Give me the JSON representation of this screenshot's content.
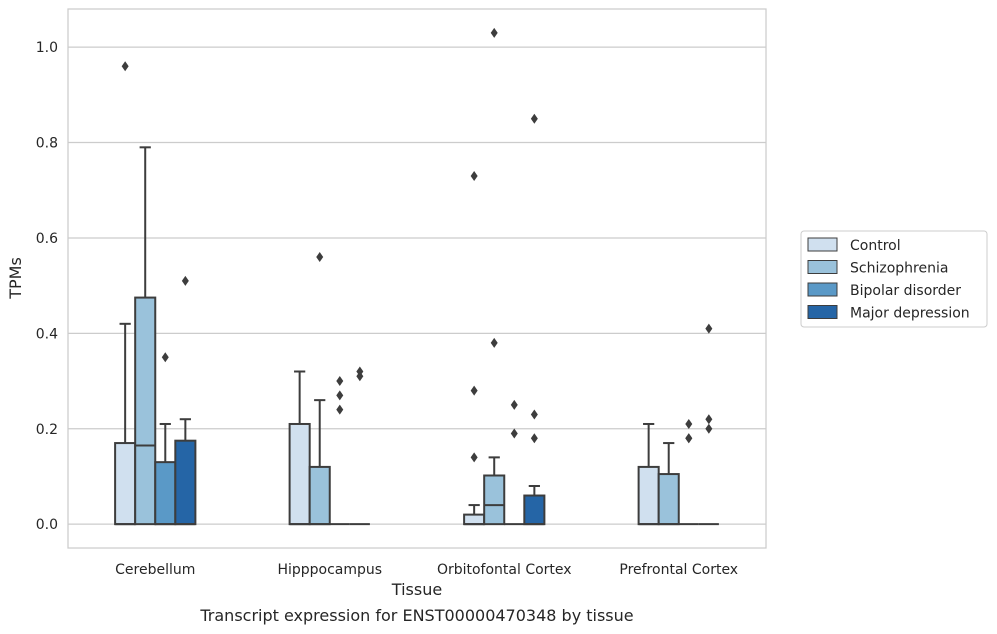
{
  "chart_data": {
    "type": "box",
    "ylabel": "TPMs",
    "xlabel": "Tissue",
    "caption": "Transcript expression for ENST00000470348 by tissue",
    "ylim": [
      -0.05,
      1.08
    ],
    "yticks": [
      "0.0",
      "0.2",
      "0.4",
      "0.6",
      "0.8",
      "1.0"
    ],
    "categories": [
      "Cerebellum",
      "Hipppocampus",
      "Orbitofontal Cortex",
      "Prefrontal Cortex"
    ],
    "grid": true,
    "legend_position": "right",
    "series": [
      {
        "name": "Control",
        "color": "#d0e0ef",
        "boxes": [
          {
            "q1": 0,
            "median": 0,
            "q3": 0.17,
            "whisker_low": 0,
            "whisker_high": 0.42,
            "outliers": [
              0.96
            ]
          },
          {
            "q1": 0,
            "median": 0,
            "q3": 0.21,
            "whisker_low": 0,
            "whisker_high": 0.32,
            "outliers": []
          },
          {
            "q1": 0,
            "median": 0,
            "q3": 0.02,
            "whisker_low": 0,
            "whisker_high": 0.04,
            "outliers": [
              0.14,
              0.28,
              0.73
            ]
          },
          {
            "q1": 0,
            "median": 0,
            "q3": 0.12,
            "whisker_low": 0,
            "whisker_high": 0.21,
            "outliers": []
          }
        ]
      },
      {
        "name": "Schizophrenia",
        "color": "#9ac2db",
        "boxes": [
          {
            "q1": 0,
            "median": 0.165,
            "q3": 0.475,
            "whisker_low": 0,
            "whisker_high": 0.79,
            "outliers": []
          },
          {
            "q1": 0,
            "median": 0,
            "q3": 0.12,
            "whisker_low": 0,
            "whisker_high": 0.26,
            "outliers": [
              0.56
            ]
          },
          {
            "q1": 0,
            "median": 0.04,
            "q3": 0.102,
            "whisker_low": 0,
            "whisker_high": 0.14,
            "outliers": [
              0.38,
              1.03
            ]
          },
          {
            "q1": 0,
            "median": 0,
            "q3": 0.105,
            "whisker_low": 0,
            "whisker_high": 0.17,
            "outliers": []
          }
        ]
      },
      {
        "name": "Bipolar disorder",
        "color": "#5a99c7",
        "boxes": [
          {
            "q1": 0,
            "median": 0,
            "q3": 0.13,
            "whisker_low": 0,
            "whisker_high": 0.21,
            "outliers": [
              0.35
            ]
          },
          {
            "q1": 0,
            "median": 0,
            "q3": 0,
            "whisker_low": 0,
            "whisker_high": 0,
            "outliers": [
              0.24,
              0.27,
              0.3
            ]
          },
          {
            "q1": 0,
            "median": 0,
            "q3": 0,
            "whisker_low": 0,
            "whisker_high": 0,
            "outliers": [
              0.19,
              0.25
            ]
          },
          {
            "q1": 0,
            "median": 0,
            "q3": 0,
            "whisker_low": 0,
            "whisker_high": 0,
            "outliers": [
              0.18,
              0.18,
              0.21
            ]
          }
        ]
      },
      {
        "name": "Major depression",
        "color": "#2565a6",
        "boxes": [
          {
            "q1": 0,
            "median": 0,
            "q3": 0.175,
            "whisker_low": 0,
            "whisker_high": 0.22,
            "outliers": [
              0.51
            ]
          },
          {
            "q1": 0,
            "median": 0,
            "q3": 0,
            "whisker_low": 0,
            "whisker_high": 0,
            "outliers": [
              0.31,
              0.32
            ]
          },
          {
            "q1": 0,
            "median": 0,
            "q3": 0.06,
            "whisker_low": 0,
            "whisker_high": 0.08,
            "outliers": [
              0.18,
              0.23,
              0.85
            ]
          },
          {
            "q1": 0,
            "median": 0,
            "q3": 0,
            "whisker_low": 0,
            "whisker_high": 0,
            "outliers": [
              0.2,
              0.22,
              0.41
            ]
          }
        ]
      }
    ]
  }
}
